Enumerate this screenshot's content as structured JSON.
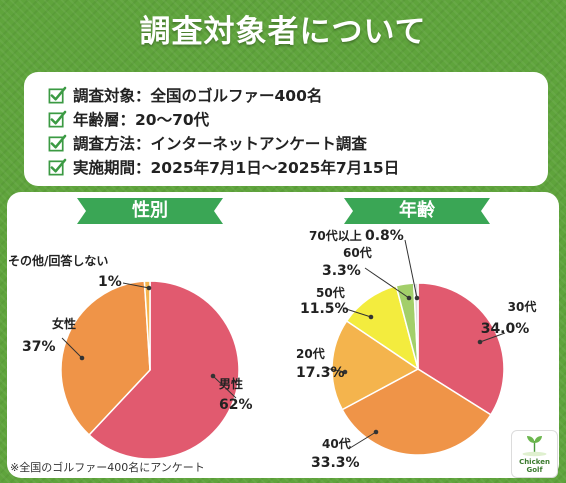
{
  "title": "調査対象者について",
  "survey": {
    "items": [
      "調査対象：全国のゴルファー400名",
      "年齢層：20〜70代",
      "調査方法：インターネットアンケート調査",
      "実施期間：2025年7月1日〜2025年7月15日"
    ]
  },
  "colors": {
    "background_grass": "#5fa43c",
    "ribbon": "#3aa655",
    "check": "#3b9a43",
    "pink": "#e15a6f",
    "orange": "#ef9448",
    "light_orange": "#f4b44d",
    "yellow": "#f3ec3e",
    "green": "#a3cf6a",
    "gray": "#dddddd"
  },
  "chart_data": [
    {
      "type": "pie",
      "title": "性別",
      "slices": [
        {
          "name": "男性",
          "label": "62%",
          "value": 62,
          "color": "#e15a6f"
        },
        {
          "name": "女性",
          "label": "37%",
          "value": 37,
          "color": "#ef9448"
        },
        {
          "name": "その他/回答しない",
          "label": "1%",
          "value": 1,
          "color": "#f4b44d"
        }
      ]
    },
    {
      "type": "pie",
      "title": "年齢",
      "slices": [
        {
          "name": "30代",
          "label": "34.0%",
          "value": 34.0,
          "color": "#e15a6f"
        },
        {
          "name": "40代",
          "label": "33.3%",
          "value": 33.3,
          "color": "#ef9448"
        },
        {
          "name": "20代",
          "label": "17.3%",
          "value": 17.3,
          "color": "#f4b44d"
        },
        {
          "name": "50代",
          "label": "11.5%",
          "value": 11.5,
          "color": "#f3ec3e"
        },
        {
          "name": "60代",
          "label": "3.3%",
          "value": 3.3,
          "color": "#a3cf6a"
        },
        {
          "name": "70代以上",
          "label": "0.8%",
          "value": 0.8,
          "color": "#dddddd"
        }
      ]
    }
  ],
  "footnote": "※全国のゴルファー400名にアンケート",
  "logo": {
    "line1": "Chicken",
    "line2": "Golf"
  }
}
